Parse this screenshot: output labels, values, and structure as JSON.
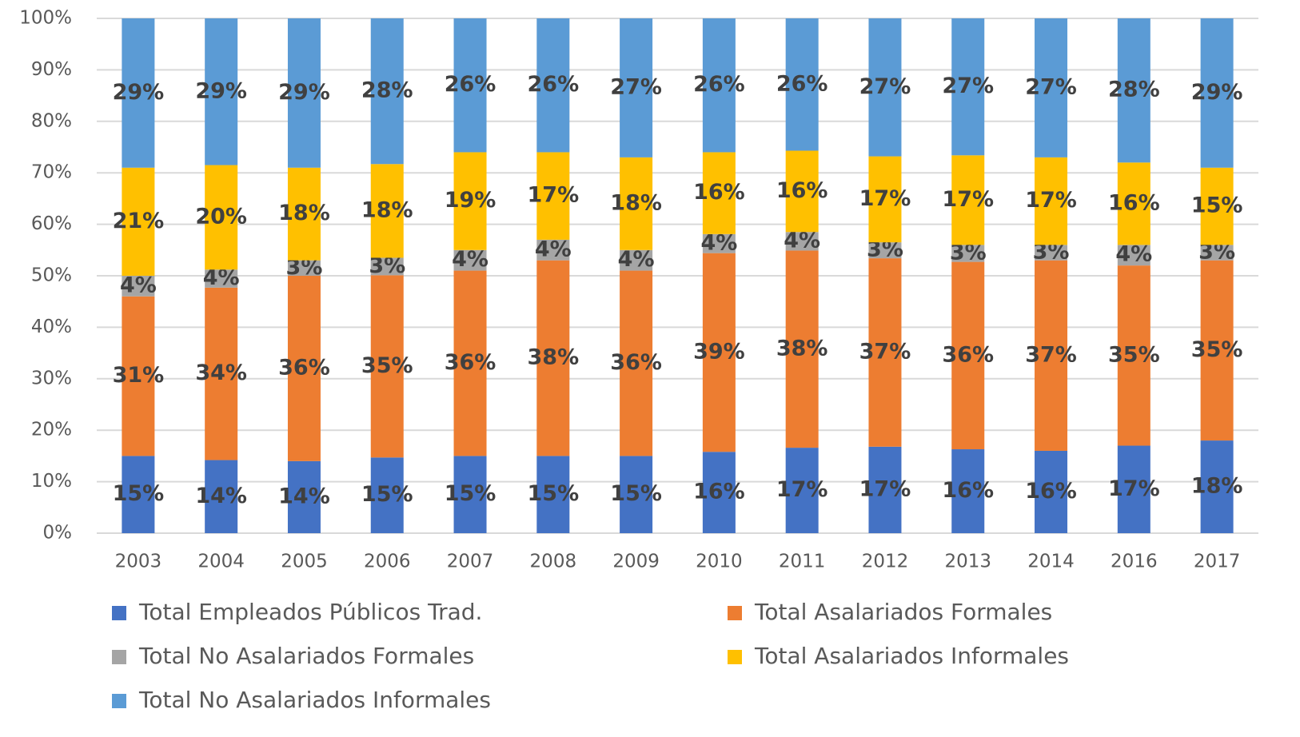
{
  "chart_data": {
    "type": "stacked_bar",
    "categories": [
      "2003",
      "2004",
      "2005",
      "2006",
      "2007",
      "2008",
      "2009",
      "2010",
      "2011",
      "2012",
      "2013",
      "2014",
      "2016",
      "2017"
    ],
    "series": [
      {
        "name": "Total Empleados Públicos Trad.",
        "color": "#4472c4",
        "values": [
          15,
          14.2,
          14,
          14.7,
          15,
          15,
          15,
          15.8,
          16.6,
          16.8,
          16.3,
          16,
          17,
          18
        ],
        "value_labels": [
          "15%",
          "14%",
          "14%",
          "15%",
          "15%",
          "15%",
          "15%",
          "16%",
          "17%",
          "17%",
          "16%",
          "16%",
          "17%",
          "18%"
        ]
      },
      {
        "name": "Total Asalariados Formales",
        "color": "#ed7d31",
        "values": [
          31,
          33.5,
          36,
          35.4,
          36,
          38,
          36,
          38.6,
          38.3,
          36.6,
          36.4,
          37,
          35,
          35
        ],
        "value_labels": [
          "31%",
          "34%",
          "36%",
          "35%",
          "36%",
          "38%",
          "36%",
          "39%",
          "38%",
          "37%",
          "36%",
          "37%",
          "35%",
          "35%"
        ]
      },
      {
        "name": "Total No Asalariados Formales",
        "color": "#a5a5a5",
        "values": [
          4,
          3.5,
          3,
          3.4,
          4,
          4,
          4,
          3.7,
          3.6,
          3.1,
          3.3,
          3,
          4,
          3
        ],
        "value_labels": [
          "4%",
          "4%",
          "3%",
          "3%",
          "4%",
          "4%",
          "4%",
          "4%",
          "4%",
          "3%",
          "3%",
          "3%",
          "4%",
          "3%"
        ]
      },
      {
        "name": "Total Asalariados Informales",
        "color": "#ffc000",
        "values": [
          21,
          20.3,
          18,
          18.2,
          19,
          17,
          18,
          15.9,
          15.8,
          16.7,
          17.4,
          17,
          16,
          15
        ],
        "value_labels": [
          "21%",
          "20%",
          "18%",
          "18%",
          "19%",
          "17%",
          "18%",
          "16%",
          "16%",
          "17%",
          "17%",
          "17%",
          "16%",
          "15%"
        ]
      },
      {
        "name": "Total No Asalariados Informales",
        "color": "#5b9bd5",
        "values": [
          29,
          28.5,
          29,
          28.3,
          26,
          26,
          27,
          26,
          25.7,
          26.8,
          26.6,
          27,
          28,
          29
        ],
        "value_labels": [
          "29%",
          "29%",
          "29%",
          "28%",
          "26%",
          "26%",
          "27%",
          "26%",
          "26%",
          "27%",
          "27%",
          "27%",
          "28%",
          "29%"
        ]
      }
    ],
    "ylim": [
      0,
      100
    ],
    "yticks": [
      {
        "value": 0,
        "label": "0%"
      },
      {
        "value": 10,
        "label": "10%"
      },
      {
        "value": 20,
        "label": "20%"
      },
      {
        "value": 30,
        "label": "30%"
      },
      {
        "value": 40,
        "label": "40%"
      },
      {
        "value": 50,
        "label": "50%"
      },
      {
        "value": 60,
        "label": "60%"
      },
      {
        "value": 70,
        "label": "70%"
      },
      {
        "value": 80,
        "label": "80%"
      },
      {
        "value": 90,
        "label": "90%"
      },
      {
        "value": 100,
        "label": "100%"
      }
    ],
    "grid": true,
    "legend": "bottom"
  }
}
